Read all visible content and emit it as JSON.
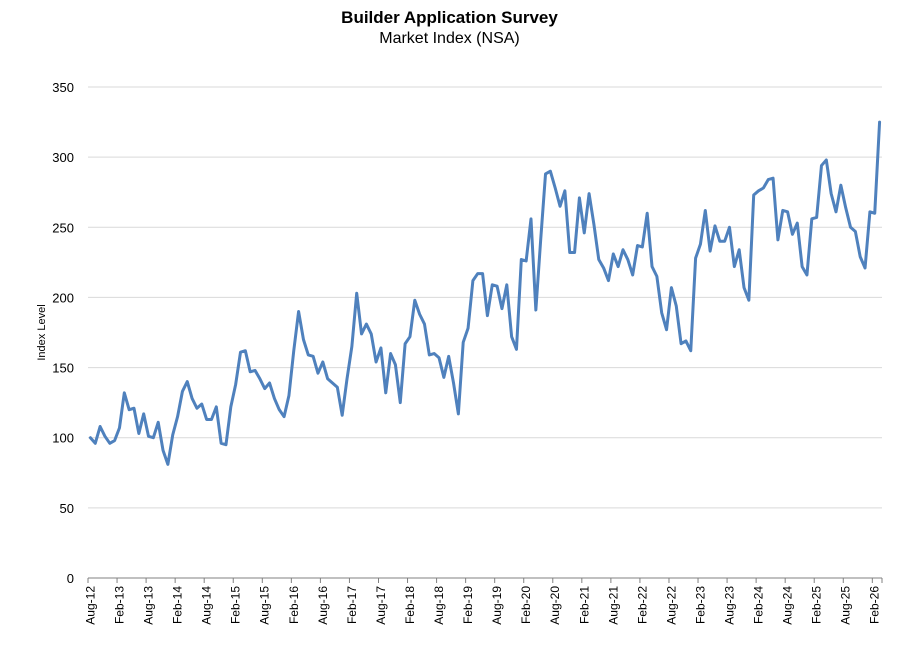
{
  "chart_data": {
    "type": "line",
    "title": "Builder Application Survey",
    "subtitle": "Market Index (NSA)",
    "xlabel": "",
    "ylabel": "Index Level",
    "ylim": [
      0,
      350
    ],
    "yticks": [
      0,
      50,
      100,
      150,
      200,
      250,
      300,
      350
    ],
    "grid": true,
    "legend": "none",
    "xtick_labels": [
      "Aug-12",
      "Feb-13",
      "Aug-13",
      "Feb-14",
      "Aug-14",
      "Feb-15",
      "Aug-15",
      "Feb-16",
      "Aug-16",
      "Feb-17",
      "Aug-17",
      "Feb-18",
      "Aug-18",
      "Feb-19",
      "Aug-19",
      "Feb-20",
      "Aug-20",
      "Feb-21",
      "Aug-21",
      "Feb-22",
      "Aug-22",
      "Feb-23",
      "Aug-23",
      "Feb-24",
      "Aug-24",
      "Feb-25",
      "Aug-25",
      "Feb-26"
    ],
    "start": "Aug-12",
    "series": [
      {
        "name": "Market Index (NSA)",
        "color": "#4F81BD",
        "values": [
          100,
          96,
          108,
          101,
          96,
          98,
          107,
          132,
          120,
          121,
          103,
          117,
          101,
          100,
          111,
          91,
          81,
          102,
          115,
          133,
          140,
          128,
          121,
          124,
          113,
          113,
          122,
          96,
          95,
          122,
          138,
          161,
          162,
          147,
          148,
          142,
          135,
          139,
          128,
          120,
          115,
          130,
          162,
          190,
          170,
          159,
          158,
          146,
          154,
          142,
          139,
          136,
          116,
          142,
          165,
          203,
          174,
          181,
          174,
          154,
          164,
          132,
          160,
          152,
          125,
          167,
          172,
          198,
          188,
          181,
          159,
          160,
          157,
          143,
          158,
          139,
          117,
          168,
          178,
          212,
          217,
          217,
          187,
          209,
          208,
          192,
          209,
          172,
          163,
          227,
          226,
          256,
          191,
          241,
          288,
          290,
          278,
          265,
          276,
          232,
          232,
          271,
          246,
          274,
          252,
          227,
          221,
          212,
          231,
          222,
          234,
          227,
          216,
          237,
          236,
          260,
          222,
          215,
          189,
          177,
          207,
          194,
          167,
          169,
          162,
          228,
          238,
          262,
          233,
          251,
          240,
          240,
          250,
          222,
          234,
          207,
          198,
          273,
          276,
          278,
          284,
          285,
          241,
          262,
          261,
          245,
          253,
          222,
          216,
          256,
          257,
          294,
          298,
          274,
          261,
          280,
          264,
          250,
          247,
          229,
          221,
          261,
          260,
          325
        ]
      }
    ]
  }
}
